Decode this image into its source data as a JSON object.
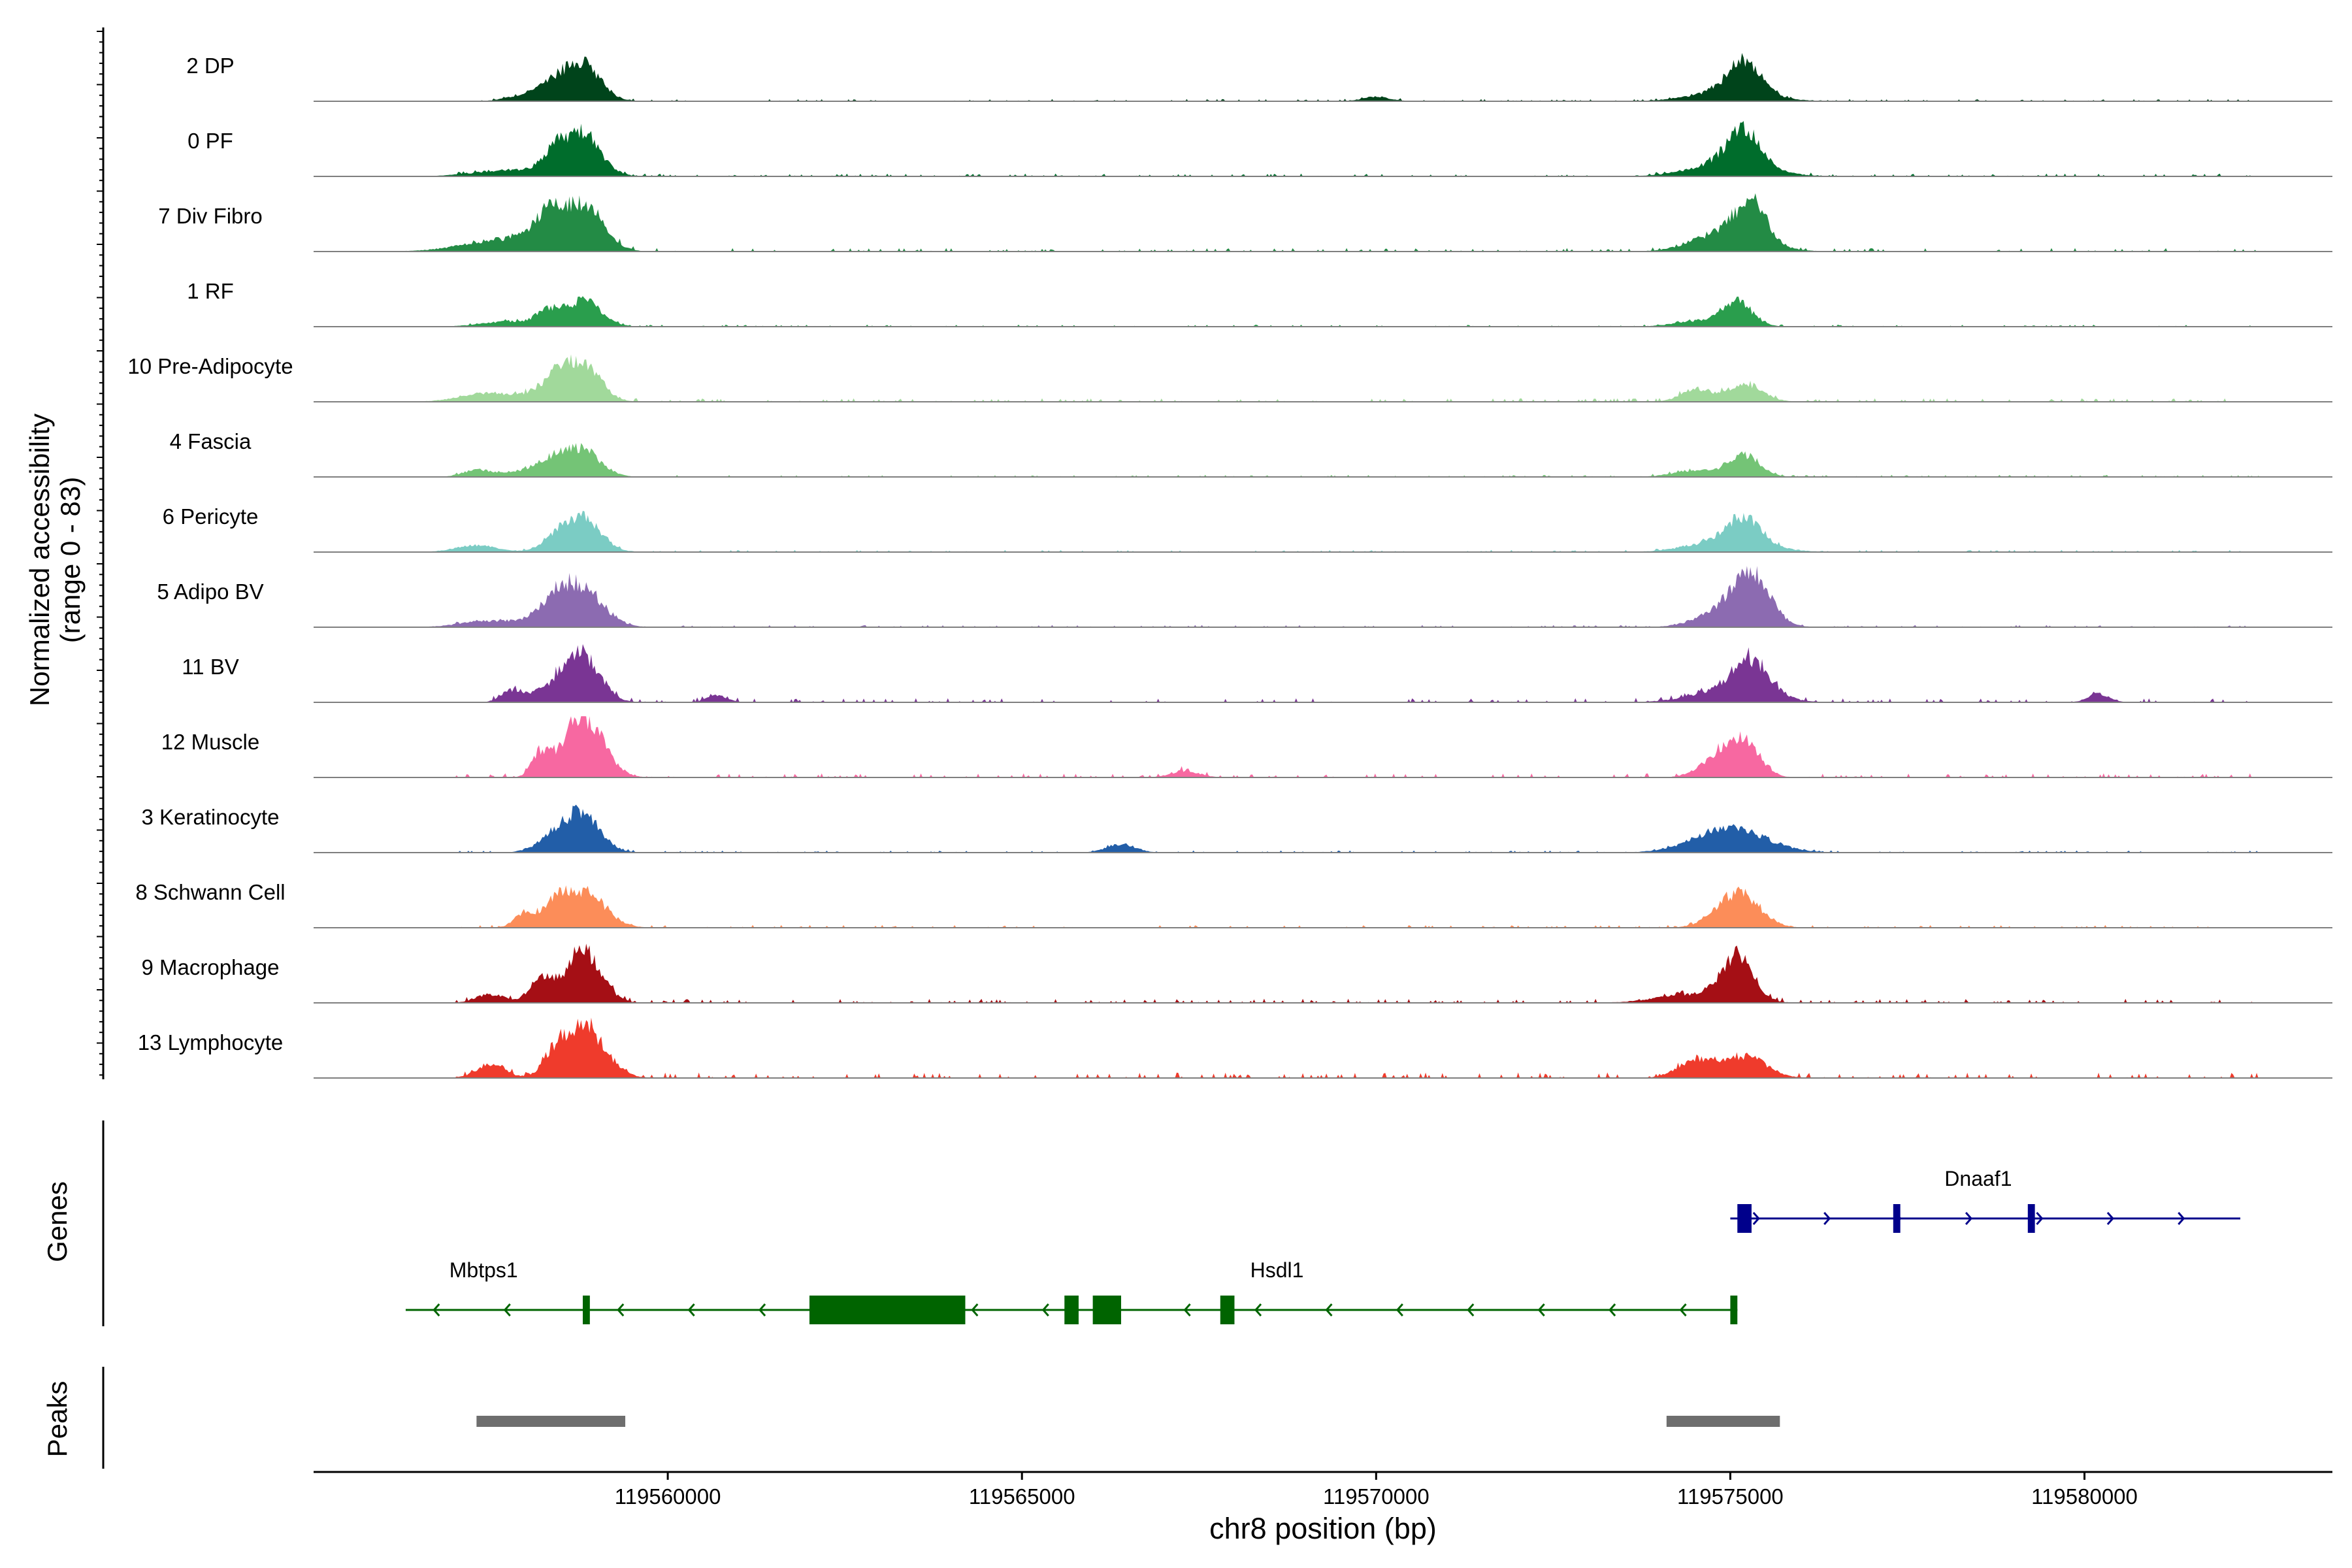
{
  "chart_data": {
    "type": "coverage-tracks",
    "region": {
      "chrom": "chr8",
      "start": 119555000,
      "end": 119583500
    },
    "xlabel": "chr8 position (bp)",
    "ylabel_line1": "Normalized accessibility",
    "ylabel_line2": "(range 0 - 83)",
    "y_range": [
      0,
      83
    ],
    "xticks": [
      119560000,
      119565000,
      119570000,
      119575000,
      119580000
    ],
    "x_tick_labels": [
      "119560000",
      "119565000",
      "119570000",
      "119575000",
      "119580000"
    ],
    "tracks": [
      {
        "name": "2 DP",
        "color": "#00441b",
        "peaks": [
          [
            119558000,
            0.15,
            250
          ],
          [
            119558400,
            0.32,
            200
          ],
          [
            119558800,
            0.85,
            250
          ],
          [
            119575000,
            0.25,
            500
          ],
          [
            119575200,
            0.7,
            220
          ],
          [
            119570000,
            0.1,
            200
          ]
        ],
        "noise": 0.03
      },
      {
        "name": "0 PF",
        "color": "#006d2c",
        "peaks": [
          [
            119557800,
            0.15,
            500
          ],
          [
            119558400,
            0.42,
            180
          ],
          [
            119558800,
            0.95,
            250
          ],
          [
            119575000,
            0.35,
            500
          ],
          [
            119575200,
            0.75,
            220
          ]
        ],
        "noise": 0.04
      },
      {
        "name": "7 Div Fibro",
        "color": "#238b45",
        "peaks": [
          [
            119557800,
            0.3,
            600
          ],
          [
            119558300,
            0.6,
            200
          ],
          [
            119558800,
            1.0,
            280
          ],
          [
            119575000,
            0.5,
            450
          ],
          [
            119575300,
            0.8,
            200
          ]
        ],
        "noise": 0.05
      },
      {
        "name": "1 RF",
        "color": "#2a9e4d",
        "peaks": [
          [
            119557800,
            0.12,
            400
          ],
          [
            119558300,
            0.3,
            150
          ],
          [
            119558800,
            0.6,
            250
          ],
          [
            119574700,
            0.15,
            400
          ],
          [
            119575100,
            0.5,
            200
          ]
        ],
        "noise": 0.03
      },
      {
        "name": "10 Pre-Adipocyte",
        "color": "#a1d99b",
        "peaks": [
          [
            119557500,
            0.2,
            400
          ],
          [
            119558400,
            0.45,
            250
          ],
          [
            119558800,
            0.8,
            250
          ],
          [
            119574500,
            0.3,
            200
          ],
          [
            119575200,
            0.4,
            250
          ]
        ],
        "noise": 0.05
      },
      {
        "name": "4 Fascia",
        "color": "#74c476",
        "peaks": [
          [
            119557300,
            0.15,
            200
          ],
          [
            119558000,
            0.15,
            300
          ],
          [
            119558400,
            0.3,
            200
          ],
          [
            119558800,
            0.6,
            250
          ],
          [
            119574500,
            0.15,
            300
          ],
          [
            119575200,
            0.5,
            220
          ]
        ],
        "noise": 0.03
      },
      {
        "name": "6 Pericyte",
        "color": "#7bccc4",
        "peaks": [
          [
            119557300,
            0.15,
            300
          ],
          [
            119558400,
            0.25,
            200
          ],
          [
            119558800,
            0.8,
            250
          ],
          [
            119575000,
            0.3,
            500
          ],
          [
            119575200,
            0.55,
            220
          ]
        ],
        "noise": 0.03
      },
      {
        "name": "5 Adipo BV",
        "color": "#8c6bb1",
        "peaks": [
          [
            119557500,
            0.15,
            400
          ],
          [
            119558400,
            0.5,
            250
          ],
          [
            119558800,
            0.8,
            300
          ],
          [
            119575000,
            0.4,
            400
          ],
          [
            119575300,
            1.0,
            250
          ]
        ],
        "noise": 0.03
      },
      {
        "name": "11 BV",
        "color": "#7a3594",
        "peaks": [
          [
            119557800,
            0.25,
            150
          ],
          [
            119558400,
            0.3,
            300
          ],
          [
            119558800,
            1.0,
            250
          ],
          [
            119560700,
            0.15,
            150
          ],
          [
            119575000,
            0.3,
            500
          ],
          [
            119575300,
            0.75,
            250
          ],
          [
            119580200,
            0.2,
            150
          ]
        ],
        "noise": 0.06
      },
      {
        "name": "12 Muscle",
        "color": "#f768a1",
        "peaks": [
          [
            119558200,
            0.5,
            120
          ],
          [
            119558800,
            1.4,
            280
          ],
          [
            119567300,
            0.15,
            200
          ],
          [
            119574800,
            0.4,
            250
          ],
          [
            119575200,
            0.8,
            220
          ]
        ],
        "noise": 0.06
      },
      {
        "name": "3 Keratinocyte",
        "color": "#225ea8",
        "peaks": [
          [
            119558400,
            0.3,
            250
          ],
          [
            119558800,
            0.85,
            250
          ],
          [
            119566400,
            0.2,
            200
          ],
          [
            119575000,
            0.55,
            500
          ]
        ],
        "noise": 0.03
      },
      {
        "name": "8 Schwann Cell",
        "color": "#fc8d59",
        "peaks": [
          [
            119558000,
            0.35,
            150
          ],
          [
            119558400,
            0.35,
            150
          ],
          [
            119558800,
            0.85,
            300
          ],
          [
            119575100,
            0.8,
            300
          ]
        ],
        "noise": 0.04
      },
      {
        "name": "9 Macrophage",
        "color": "#a50f15",
        "peaks": [
          [
            119557500,
            0.2,
            200
          ],
          [
            119558200,
            0.55,
            150
          ],
          [
            119558800,
            1.2,
            250
          ],
          [
            119574500,
            0.2,
            500
          ],
          [
            119575100,
            1.0,
            220
          ]
        ],
        "noise": 0.06
      },
      {
        "name": "13 Lymphocyte",
        "color": "#ef3b2c",
        "peaks": [
          [
            119557500,
            0.3,
            200
          ],
          [
            119558400,
            0.3,
            150
          ],
          [
            119558800,
            1.2,
            300
          ],
          [
            119574500,
            0.4,
            250
          ],
          [
            119575200,
            0.5,
            300
          ]
        ],
        "noise": 0.08
      }
    ],
    "genes_label": "Genes",
    "peaks_label": "Peaks",
    "genes": [
      {
        "name": "Mbtps1",
        "strand": "-",
        "start": 119556300,
        "end": 119558900,
        "color": "#006400",
        "exons": [
          [
            119558800,
            119558900
          ]
        ]
      },
      {
        "name": "Hsdl1",
        "strand": "-",
        "start": 119558900,
        "end": 119575100,
        "color": "#006400",
        "exons": [
          [
            119562000,
            119564200
          ],
          [
            119565600,
            119565800
          ],
          [
            119566000,
            119566400
          ],
          [
            119567800,
            119568000
          ],
          [
            119575000,
            119575100
          ]
        ]
      },
      {
        "name": "Dnaaf1",
        "strand": "+",
        "start": 119575000,
        "end": 119582200,
        "color": "#00008b",
        "exons": [
          [
            119575100,
            119575300
          ],
          [
            119577300,
            119577400
          ],
          [
            119579200,
            119579300
          ]
        ]
      }
    ],
    "peak_regions": [
      [
        119557300,
        119559400
      ],
      [
        119574100,
        119575700
      ]
    ]
  }
}
